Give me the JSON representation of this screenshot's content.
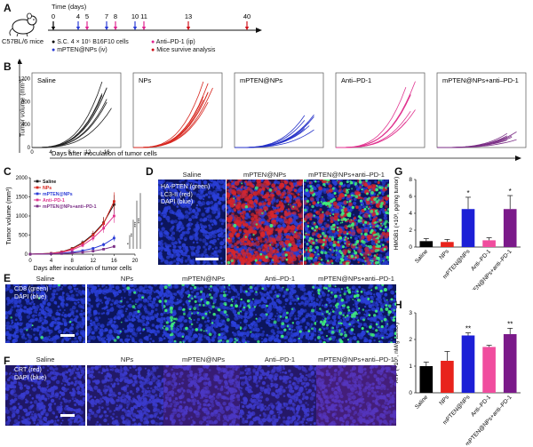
{
  "panels": [
    "A",
    "B",
    "C",
    "D",
    "E",
    "F",
    "G",
    "H"
  ],
  "timeline": {
    "title": "Time (days)",
    "days": [
      "0",
      "4",
      "5",
      "7",
      "8",
      "10",
      "11",
      "13",
      "40"
    ],
    "mouse_label": "C57BL/6 mice",
    "legend": [
      {
        "text": "S.C. 4 × 10⁵ B16F10 cells",
        "color": "#000000"
      },
      {
        "text": "mPTEN@NPs (iv)",
        "color": "#2a3bd6"
      },
      {
        "text": "Anti–PD-1 (ip)",
        "color": "#e0248f"
      },
      {
        "text": "Mice survive analysis",
        "color": "#d0121b"
      }
    ]
  },
  "panel_b": {
    "ylabel": "Tumor volume (mm³)",
    "xlabel": "Days after inoculation of tumor cells",
    "yticks": [
      "0",
      "400",
      "800",
      "1200"
    ],
    "xticks": [
      "0",
      "4",
      "8",
      "12",
      "16"
    ],
    "groups": [
      {
        "name": "Saline",
        "color": "#222222"
      },
      {
        "name": "NPs",
        "color": "#d7261e"
      },
      {
        "name": "mPTEN@NPs",
        "color": "#2430c8"
      },
      {
        "name": "Anti–PD-1",
        "color": "#e0348f"
      },
      {
        "name": "mPTEN@NPs+anti–PD-1",
        "color": "#7b2f86"
      }
    ]
  },
  "chart_data": [
    {
      "type": "line",
      "title": "",
      "xlabel": "Days after inoculation of tumor cells",
      "ylabel": "Tumor volume (mm³)",
      "x": [
        0,
        4,
        6,
        8,
        10,
        12,
        14,
        16
      ],
      "xlim": [
        0,
        20
      ],
      "ylim": [
        0,
        2000
      ],
      "yticks": [
        "0",
        "500",
        "1000",
        "1500",
        "2000"
      ],
      "xticks": [
        "0",
        "4",
        "8",
        "12",
        "16",
        "20"
      ],
      "legend_placement": "top-left",
      "series": [
        {
          "name": "Saline",
          "color": "#111111",
          "values": [
            0,
            20,
            60,
            150,
            300,
            520,
            820,
            1300
          ],
          "err": [
            0,
            5,
            15,
            30,
            60,
            90,
            150,
            250
          ]
        },
        {
          "name": "NPs",
          "color": "#d7261e",
          "values": [
            0,
            20,
            55,
            140,
            280,
            500,
            800,
            1380
          ],
          "err": [
            0,
            5,
            15,
            30,
            60,
            100,
            160,
            240
          ]
        },
        {
          "name": "mPTEN@NPs",
          "color": "#2a3bd6",
          "values": [
            0,
            10,
            25,
            50,
            90,
            150,
            250,
            420
          ],
          "err": [
            0,
            3,
            6,
            10,
            20,
            30,
            50,
            80
          ]
        },
        {
          "name": "Anti–PD-1",
          "color": "#e0348f",
          "values": [
            0,
            15,
            45,
            110,
            230,
            420,
            680,
            1000
          ],
          "err": [
            0,
            4,
            12,
            25,
            50,
            80,
            120,
            180
          ]
        },
        {
          "name": "mPTEN@NPs+anti–PD-1",
          "color": "#7b2f86",
          "values": [
            0,
            8,
            15,
            30,
            50,
            80,
            130,
            200
          ],
          "err": [
            0,
            2,
            4,
            6,
            10,
            15,
            25,
            40
          ]
        }
      ],
      "annotations": [
        "*",
        "**",
        "***",
        "***"
      ]
    },
    {
      "type": "bar",
      "title": "",
      "ylabel": "HMGB1 (×10³, pg/mg tumor)",
      "categories": [
        "Saline",
        "NPs",
        "mPTEN@NPs",
        "Anti–PD-1",
        "mPTEN@NPs+anti–PD-1"
      ],
      "values": [
        0.7,
        0.6,
        4.5,
        0.8,
        4.5
      ],
      "err": [
        0.3,
        0.3,
        1.4,
        0.3,
        1.6
      ],
      "colors": [
        "#000000",
        "#e8231c",
        "#1c1fd6",
        "#f04d9e",
        "#7b1a8a"
      ],
      "ylim": [
        0,
        8
      ],
      "yticks": [
        "0",
        "2",
        "4",
        "6",
        "8"
      ],
      "annotations": [
        "",
        "",
        "*",
        "",
        "*"
      ]
    },
    {
      "type": "bar",
      "title": "",
      "ylabel": "ATP (×10⁵, nM/g tumor)",
      "categories": [
        "Saline",
        "NPs",
        "mPTEN@NPs",
        "Anti–PD-1",
        "mPTEN@NPs+anti–PD-1"
      ],
      "values": [
        1.0,
        1.2,
        2.15,
        1.72,
        2.2
      ],
      "err": [
        0.15,
        0.35,
        0.1,
        0.06,
        0.22
      ],
      "colors": [
        "#000000",
        "#e8231c",
        "#1c1fd6",
        "#f04d9e",
        "#7b1a8a"
      ],
      "ylim": [
        0,
        3
      ],
      "yticks": [
        "0",
        "1",
        "2",
        "3"
      ],
      "annotations": [
        "",
        "",
        "**",
        "",
        "**"
      ]
    }
  ],
  "panel_d": {
    "columns": [
      "Saline",
      "mPTEN@NPs",
      "mPTEN@NPs+anti–PD-1"
    ],
    "stain": [
      "HA-PTEN (green)",
      "LC3-II (red)",
      "DAPI (blue)"
    ]
  },
  "panel_e": {
    "columns": [
      "Saline",
      "NPs",
      "mPTEN@NPs",
      "Anti–PD-1",
      "mPTEN@NPs+anti–PD-1"
    ],
    "stain": [
      "CD8 (green)",
      "DAPI (blue)"
    ]
  },
  "panel_f": {
    "columns": [
      "Saline",
      "NPs",
      "mPTEN@NPs",
      "Anti–PD-1",
      "mPTEN@NPs+anti–PD-1"
    ],
    "stain": [
      "CRT (red)",
      "DAPI (blue)"
    ]
  }
}
